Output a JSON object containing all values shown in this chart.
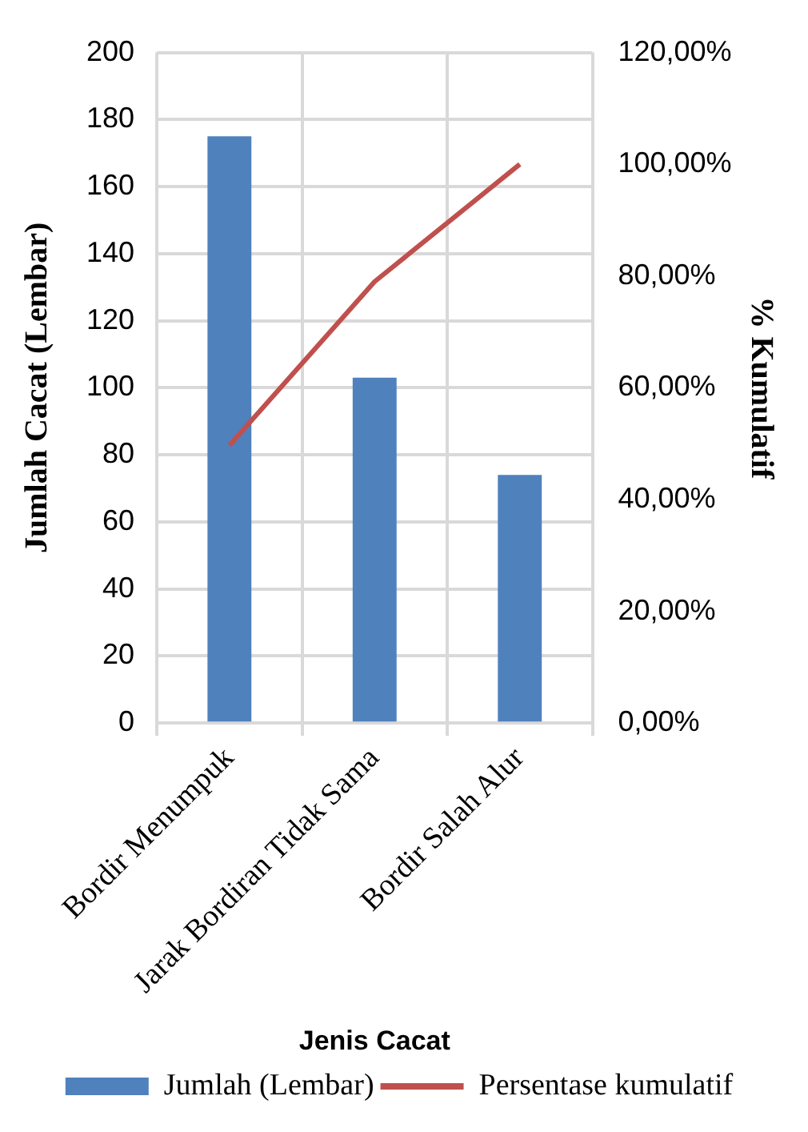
{
  "chart_data": {
    "type": "bar",
    "xlabel": "Jenis Cacat",
    "ylabel": "Jumlah Cacat (Lembar)",
    "y2label": "% Kumulatif",
    "categories": [
      "Bordir Menumpuk",
      "Jarak Bordiran Tidak Sama",
      "Bordir Salah Alur"
    ],
    "series": [
      {
        "name": "Jumlah (Lembar)",
        "color": "#4f81bd",
        "values": [
          175,
          103,
          74
        ]
      },
      {
        "name": "Persentase kumulatif",
        "type": "line",
        "axis": "y2",
        "color": "#c0504d",
        "values": [
          49.7,
          79,
          100
        ]
      }
    ],
    "ylim": [
      0,
      200
    ],
    "yticks": [
      0,
      20,
      40,
      60,
      80,
      100,
      120,
      140,
      160,
      180,
      200
    ],
    "y2lim": [
      0,
      120
    ],
    "y2ticks": [
      {
        "value": 0,
        "label": "0,00%"
      },
      {
        "value": 20,
        "label": "20,00%"
      },
      {
        "value": 40,
        "label": "40,00%"
      },
      {
        "value": 60,
        "label": "60,00%"
      },
      {
        "value": 80,
        "label": "80,00%"
      },
      {
        "value": 100,
        "label": "100,00%"
      },
      {
        "value": 120,
        "label": "120,00%"
      }
    ],
    "grid": true,
    "legend": "bottom",
    "marker": "none"
  }
}
